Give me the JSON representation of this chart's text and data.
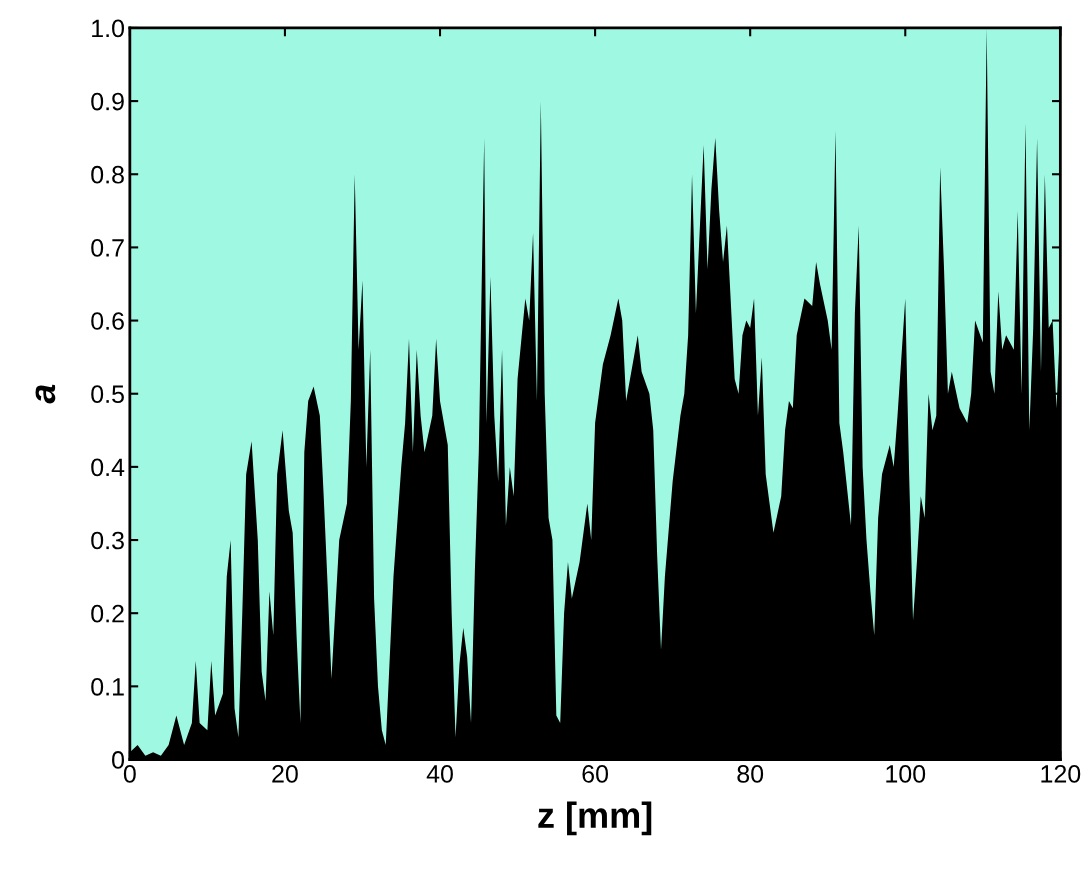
{
  "chart_data": {
    "type": "area",
    "xlabel": "z [mm]",
    "ylabel": "a",
    "xlim": [
      0,
      120
    ],
    "xticks": [
      0,
      20,
      40,
      60,
      80,
      100,
      120
    ],
    "ylim": [
      0,
      1
    ],
    "yticks": [
      0,
      0.1,
      0.2,
      0.3,
      0.4,
      0.5,
      0.6,
      0.7,
      0.8,
      0.9,
      {
        "value": 1,
        "label": "1.0"
      }
    ],
    "grid": false,
    "legend": false,
    "series": [
      {
        "color": "#000000",
        "x": [
          0,
          1,
          2,
          3,
          4,
          5,
          6,
          7,
          8,
          8.5,
          9,
          10,
          10.5,
          11,
          12,
          12.5,
          13,
          13.5,
          14,
          14.5,
          15,
          15.7,
          16.5,
          17,
          17.5,
          18,
          18.5,
          19,
          19.7,
          20.5,
          21,
          21.5,
          22,
          22.5,
          23,
          23.7,
          24.5,
          25,
          25.5,
          26,
          27,
          28,
          28.5,
          29,
          29.5,
          30,
          30.5,
          31,
          31.5,
          32,
          32.5,
          33,
          34,
          35,
          35.5,
          36,
          36.5,
          37,
          37.5,
          38,
          39,
          39.5,
          40,
          41,
          41.5,
          42,
          42.5,
          43,
          43.5,
          44,
          44.5,
          45,
          45.7,
          46,
          46.5,
          47,
          47.5,
          48,
          48.5,
          49,
          49.5,
          50,
          51,
          51.5,
          52,
          52.5,
          53,
          53.5,
          54,
          54.5,
          55,
          55.5,
          56,
          56.5,
          57,
          58,
          59,
          59.5,
          60,
          61,
          62,
          63,
          63.5,
          64,
          65,
          65.5,
          66,
          67,
          67.5,
          68,
          68.5,
          69,
          70,
          71,
          71.5,
          72,
          72.5,
          73,
          74,
          74.5,
          75,
          75.5,
          76,
          76.5,
          77,
          78,
          78.5,
          79,
          79.5,
          80,
          80.5,
          81,
          81.5,
          82,
          83,
          84,
          84.5,
          85,
          85.5,
          86,
          87,
          88,
          88.5,
          89,
          90,
          90.5,
          91,
          91.5,
          92,
          93,
          93.5,
          94,
          94.5,
          95,
          95.5,
          96,
          96.5,
          97,
          98,
          98.5,
          99,
          100,
          100.5,
          101,
          101.5,
          102,
          102.5,
          103,
          103.5,
          104,
          104.5,
          105,
          105.5,
          106,
          107,
          108,
          108.5,
          109,
          110,
          110.5,
          111,
          111.5,
          112,
          112.5,
          113,
          114,
          114.5,
          115,
          115.5,
          116,
          116.5,
          117,
          117.5,
          118,
          118.5,
          119,
          119.5,
          120
        ],
        "values": [
          0.01,
          0.02,
          0.005,
          0.01,
          0.005,
          0.02,
          0.06,
          0.02,
          0.05,
          0.135,
          0.05,
          0.04,
          0.135,
          0.06,
          0.09,
          0.25,
          0.3,
          0.07,
          0.03,
          0.2,
          0.39,
          0.435,
          0.3,
          0.12,
          0.08,
          0.23,
          0.17,
          0.39,
          0.45,
          0.34,
          0.31,
          0.17,
          0.05,
          0.42,
          0.49,
          0.51,
          0.47,
          0.36,
          0.24,
          0.11,
          0.3,
          0.35,
          0.49,
          0.8,
          0.56,
          0.655,
          0.4,
          0.56,
          0.22,
          0.1,
          0.04,
          0.02,
          0.25,
          0.4,
          0.46,
          0.575,
          0.42,
          0.56,
          0.47,
          0.42,
          0.47,
          0.575,
          0.49,
          0.43,
          0.2,
          0.03,
          0.13,
          0.18,
          0.14,
          0.05,
          0.26,
          0.42,
          0.85,
          0.46,
          0.66,
          0.47,
          0.38,
          0.56,
          0.32,
          0.4,
          0.36,
          0.52,
          0.63,
          0.6,
          0.72,
          0.49,
          0.9,
          0.5,
          0.33,
          0.3,
          0.06,
          0.05,
          0.2,
          0.27,
          0.22,
          0.27,
          0.35,
          0.3,
          0.46,
          0.54,
          0.58,
          0.63,
          0.6,
          0.49,
          0.55,
          0.58,
          0.53,
          0.5,
          0.45,
          0.28,
          0.15,
          0.25,
          0.38,
          0.47,
          0.5,
          0.58,
          0.8,
          0.61,
          0.84,
          0.67,
          0.78,
          0.85,
          0.75,
          0.68,
          0.73,
          0.52,
          0.5,
          0.58,
          0.6,
          0.59,
          0.63,
          0.47,
          0.55,
          0.39,
          0.31,
          0.36,
          0.45,
          0.49,
          0.48,
          0.58,
          0.63,
          0.62,
          0.68,
          0.65,
          0.6,
          0.56,
          0.86,
          0.46,
          0.42,
          0.32,
          0.61,
          0.73,
          0.4,
          0.3,
          0.23,
          0.17,
          0.33,
          0.39,
          0.43,
          0.4,
          0.47,
          0.63,
          0.39,
          0.19,
          0.27,
          0.36,
          0.33,
          0.5,
          0.45,
          0.47,
          0.81,
          0.67,
          0.5,
          0.53,
          0.48,
          0.46,
          0.5,
          0.6,
          0.57,
          1.0,
          0.53,
          0.5,
          0.64,
          0.56,
          0.58,
          0.56,
          0.75,
          0.5,
          0.87,
          0.45,
          0.59,
          0.85,
          0.53,
          0.8,
          0.59,
          0.6,
          0.48,
          0.6
        ]
      }
    ]
  }
}
